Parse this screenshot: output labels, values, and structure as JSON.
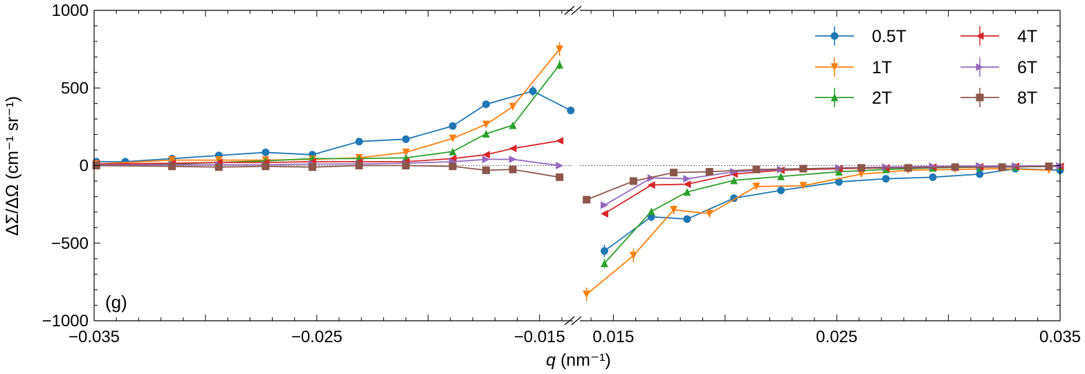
{
  "chart_data": {
    "type": "line",
    "ylabel": "ΔΣ/ΔΩ (cm⁻¹ sr⁻¹)",
    "xlabel_var": "q",
    "xlabel_units": " (nm⁻¹)",
    "panel_label": "(g)",
    "ylim": [
      -1000,
      1000
    ],
    "yticks": [
      -1000,
      -500,
      0,
      500,
      1000
    ],
    "ytick_labels": [
      "−1000",
      "−500",
      "0",
      "500",
      "1000"
    ],
    "broken_x_axis": true,
    "left_panel": {
      "xlim": [
        -0.035,
        -0.0135
      ],
      "xticks": [
        -0.035,
        -0.025,
        -0.015
      ],
      "xtick_labels": [
        "−0.035",
        "−0.025",
        "−0.015"
      ]
    },
    "right_panel": {
      "xlim": [
        0.0135,
        0.035
      ],
      "xticks": [
        0.015,
        0.025,
        0.035
      ],
      "xtick_labels": [
        "0.015",
        "0.025",
        "0.035"
      ]
    },
    "legend": {
      "location": "top-right",
      "columns": 2
    },
    "series": [
      {
        "name": "0.5T",
        "color": "#1f77b4",
        "marker": "circle",
        "left": [
          [
            -0.0349,
            25
          ],
          [
            -0.0336,
            25
          ],
          [
            -0.0315,
            45
          ],
          [
            -0.0294,
            65
          ],
          [
            -0.0273,
            85
          ],
          [
            -0.0252,
            70
          ],
          [
            -0.0231,
            155
          ],
          [
            -0.021,
            170
          ],
          [
            -0.0189,
            255
          ],
          [
            -0.0174,
            395
          ],
          [
            -0.0153,
            480
          ],
          [
            -0.0136,
            355
          ]
        ],
        "left_err": [
          4,
          4,
          5,
          6,
          8,
          8,
          12,
          18,
          20,
          25,
          35,
          25
        ],
        "right": [
          [
            0.0146,
            -550
          ],
          [
            0.0167,
            -330
          ],
          [
            0.0183,
            -345
          ],
          [
            0.0204,
            -210
          ],
          [
            0.0225,
            -160
          ],
          [
            0.0251,
            -105
          ],
          [
            0.0272,
            -85
          ],
          [
            0.0293,
            -75
          ],
          [
            0.0314,
            -55
          ],
          [
            0.033,
            -20
          ],
          [
            0.035,
            -30
          ]
        ],
        "right_err": [
          40,
          30,
          25,
          20,
          15,
          10,
          8,
          8,
          6,
          5,
          5
        ]
      },
      {
        "name": "1T",
        "color": "#ff7f0e",
        "marker": "triangle-down",
        "left": [
          [
            -0.0349,
            10
          ],
          [
            -0.0315,
            35
          ],
          [
            -0.0294,
            35
          ],
          [
            -0.0273,
            35
          ],
          [
            -0.0252,
            40
          ],
          [
            -0.0231,
            50
          ],
          [
            -0.021,
            85
          ],
          [
            -0.0189,
            175
          ],
          [
            -0.0174,
            265
          ],
          [
            -0.0162,
            380
          ],
          [
            -0.0141,
            750
          ]
        ],
        "left_err": [
          4,
          5,
          5,
          5,
          5,
          6,
          8,
          12,
          15,
          25,
          45
        ],
        "right": [
          [
            0.0138,
            -830
          ],
          [
            0.0159,
            -580
          ],
          [
            0.0177,
            -285
          ],
          [
            0.0193,
            -310
          ],
          [
            0.0214,
            -135
          ],
          [
            0.0235,
            -130
          ],
          [
            0.0261,
            -55
          ],
          [
            0.0282,
            -30
          ],
          [
            0.0303,
            -25
          ],
          [
            0.0324,
            -20
          ],
          [
            0.0345,
            -30
          ]
        ],
        "right_err": [
          45,
          45,
          30,
          25,
          15,
          10,
          8,
          6,
          6,
          5,
          5
        ]
      },
      {
        "name": "2T",
        "color": "#2ca02c",
        "marker": "triangle-up",
        "left": [
          [
            -0.0349,
            5
          ],
          [
            -0.0315,
            10
          ],
          [
            -0.0294,
            20
          ],
          [
            -0.0273,
            30
          ],
          [
            -0.0252,
            45
          ],
          [
            -0.0231,
            45
          ],
          [
            -0.021,
            50
          ],
          [
            -0.0189,
            90
          ],
          [
            -0.0174,
            205
          ],
          [
            -0.0162,
            260
          ],
          [
            -0.0141,
            650
          ]
        ],
        "left_err": [
          3,
          4,
          4,
          5,
          5,
          5,
          6,
          8,
          12,
          15,
          30
        ],
        "right": [
          [
            0.0146,
            -630
          ],
          [
            0.0167,
            -295
          ],
          [
            0.0183,
            -170
          ],
          [
            0.0204,
            -95
          ],
          [
            0.0225,
            -70
          ],
          [
            0.0251,
            -40
          ],
          [
            0.0272,
            -25
          ],
          [
            0.0293,
            -15
          ],
          [
            0.0314,
            -10
          ],
          [
            0.033,
            -8
          ],
          [
            0.035,
            -5
          ]
        ],
        "right_err": [
          30,
          20,
          15,
          10,
          8,
          6,
          5,
          5,
          4,
          4,
          4
        ]
      },
      {
        "name": "4T",
        "color": "#d62728",
        "marker": "triangle-left",
        "left": [
          [
            -0.0349,
            10
          ],
          [
            -0.0315,
            15
          ],
          [
            -0.0294,
            20
          ],
          [
            -0.0273,
            20
          ],
          [
            -0.0252,
            25
          ],
          [
            -0.0231,
            25
          ],
          [
            -0.021,
            25
          ],
          [
            -0.0189,
            45
          ],
          [
            -0.0174,
            70
          ],
          [
            -0.0162,
            110
          ],
          [
            -0.0141,
            160
          ]
        ],
        "left_err": [
          3,
          3,
          3,
          3,
          3,
          3,
          3,
          4,
          5,
          6,
          8
        ],
        "right": [
          [
            0.0146,
            -310
          ],
          [
            0.0167,
            -125
          ],
          [
            0.0183,
            -120
          ],
          [
            0.0204,
            -55
          ],
          [
            0.0225,
            -30
          ],
          [
            0.0251,
            -20
          ],
          [
            0.0272,
            -15
          ],
          [
            0.0293,
            -10
          ],
          [
            0.0314,
            -8
          ],
          [
            0.033,
            -5
          ],
          [
            0.035,
            -5
          ]
        ],
        "right_err": [
          15,
          10,
          8,
          6,
          5,
          4,
          4,
          3,
          3,
          3,
          3
        ]
      },
      {
        "name": "6T",
        "color": "#9467bd",
        "marker": "triangle-right",
        "left": [
          [
            -0.0349,
            5
          ],
          [
            -0.0315,
            5
          ],
          [
            -0.0294,
            5
          ],
          [
            -0.0273,
            5
          ],
          [
            -0.0252,
            10
          ],
          [
            -0.0231,
            10
          ],
          [
            -0.021,
            15
          ],
          [
            -0.0189,
            25
          ],
          [
            -0.0174,
            40
          ],
          [
            -0.0162,
            40
          ],
          [
            -0.0141,
            0
          ]
        ],
        "left_err": [
          3,
          3,
          3,
          3,
          3,
          3,
          3,
          3,
          4,
          4,
          4
        ],
        "right": [
          [
            0.0146,
            -255
          ],
          [
            0.0167,
            -80
          ],
          [
            0.0183,
            -85
          ],
          [
            0.0204,
            -40
          ],
          [
            0.0225,
            -25
          ],
          [
            0.0251,
            -15
          ],
          [
            0.0272,
            -10
          ],
          [
            0.0293,
            -5
          ],
          [
            0.0314,
            -3
          ],
          [
            0.033,
            -3
          ],
          [
            0.035,
            -3
          ]
        ],
        "right_err": [
          15,
          8,
          8,
          6,
          5,
          4,
          3,
          3,
          3,
          3,
          3
        ]
      },
      {
        "name": "8T",
        "color": "#8c564b",
        "marker": "square",
        "left": [
          [
            -0.0349,
            0
          ],
          [
            -0.0315,
            -5
          ],
          [
            -0.0294,
            -10
          ],
          [
            -0.0273,
            -5
          ],
          [
            -0.0252,
            -10
          ],
          [
            -0.0231,
            0
          ],
          [
            -0.021,
            0
          ],
          [
            -0.0189,
            -5
          ],
          [
            -0.0174,
            -30
          ],
          [
            -0.0162,
            -25
          ],
          [
            -0.0141,
            -75
          ]
        ],
        "left_err": [
          3,
          3,
          3,
          3,
          3,
          3,
          3,
          3,
          4,
          4,
          5
        ],
        "right": [
          [
            0.0138,
            -220
          ],
          [
            0.0159,
            -100
          ],
          [
            0.0177,
            -45
          ],
          [
            0.0193,
            -40
          ],
          [
            0.0214,
            -25
          ],
          [
            0.0235,
            -20
          ],
          [
            0.0261,
            -15
          ],
          [
            0.0282,
            -15
          ],
          [
            0.0303,
            -10
          ],
          [
            0.0324,
            -10
          ],
          [
            0.0345,
            -5
          ]
        ],
        "right_err": [
          10,
          6,
          5,
          4,
          4,
          3,
          3,
          3,
          3,
          3,
          3
        ]
      }
    ]
  }
}
